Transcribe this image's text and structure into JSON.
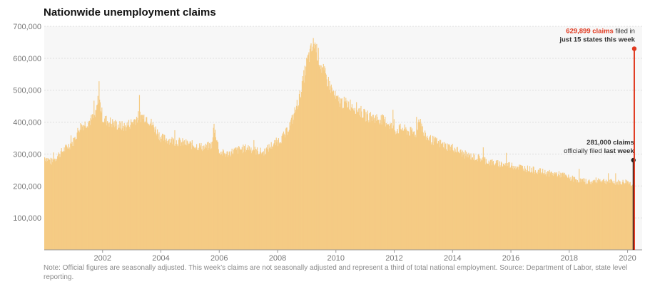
{
  "chart_data": {
    "type": "area",
    "title": "Nationwide unemployment claims",
    "xlabel": "",
    "ylabel": "",
    "xlim": [
      2000.0,
      2020.5
    ],
    "ylim": [
      0,
      700000
    ],
    "y_ticks": [
      {
        "value": 100000,
        "label": "100,000"
      },
      {
        "value": 200000,
        "label": "200,000"
      },
      {
        "value": 300000,
        "label": "300,000"
      },
      {
        "value": 400000,
        "label": "400,000"
      },
      {
        "value": 500000,
        "label": "500,000"
      },
      {
        "value": 600000,
        "label": "600,000"
      },
      {
        "value": 700000,
        "label": "700,000"
      }
    ],
    "x_ticks": [
      {
        "value": 2002,
        "label": "2002"
      },
      {
        "value": 2004,
        "label": "2004"
      },
      {
        "value": 2006,
        "label": "2006"
      },
      {
        "value": 2008,
        "label": "2008"
      },
      {
        "value": 2010,
        "label": "2010"
      },
      {
        "value": 2012,
        "label": "2012"
      },
      {
        "value": 2014,
        "label": "2014"
      },
      {
        "value": 2016,
        "label": "2016"
      },
      {
        "value": 2018,
        "label": "2018"
      },
      {
        "value": 2020,
        "label": "2020"
      }
    ],
    "grid": "horizontal",
    "colors": {
      "area": "#f5cb84",
      "highlight": "#e0391f",
      "last": "#222222",
      "plot_bg": "#f7f7f7",
      "grid": "#dddddd"
    },
    "series": [
      {
        "values": [
          [
            2000.0,
            290000
          ],
          [
            2000.25,
            275000
          ],
          [
            2000.5,
            300000
          ],
          [
            2000.75,
            320000
          ],
          [
            2001.0,
            340000
          ],
          [
            2001.2,
            385000
          ],
          [
            2001.5,
            400000
          ],
          [
            2001.75,
            420000
          ],
          [
            2001.85,
            480000
          ],
          [
            2002.0,
            410000
          ],
          [
            2002.25,
            400000
          ],
          [
            2002.5,
            390000
          ],
          [
            2002.75,
            385000
          ],
          [
            2003.0,
            400000
          ],
          [
            2003.25,
            420000
          ],
          [
            2003.5,
            415000
          ],
          [
            2003.75,
            385000
          ],
          [
            2004.0,
            350000
          ],
          [
            2004.25,
            345000
          ],
          [
            2004.5,
            340000
          ],
          [
            2004.75,
            335000
          ],
          [
            2005.0,
            330000
          ],
          [
            2005.25,
            325000
          ],
          [
            2005.5,
            320000
          ],
          [
            2005.75,
            330000
          ],
          [
            2005.8,
            390000
          ],
          [
            2006.0,
            305000
          ],
          [
            2006.25,
            300000
          ],
          [
            2006.5,
            310000
          ],
          [
            2006.75,
            315000
          ],
          [
            2007.0,
            320000
          ],
          [
            2007.25,
            310000
          ],
          [
            2007.5,
            305000
          ],
          [
            2007.75,
            325000
          ],
          [
            2008.0,
            340000
          ],
          [
            2008.25,
            360000
          ],
          [
            2008.5,
            410000
          ],
          [
            2008.75,
            480000
          ],
          [
            2009.0,
            590000
          ],
          [
            2009.25,
            650000
          ],
          [
            2009.5,
            570000
          ],
          [
            2009.75,
            520000
          ],
          [
            2010.0,
            470000
          ],
          [
            2010.25,
            460000
          ],
          [
            2010.5,
            455000
          ],
          [
            2010.75,
            440000
          ],
          [
            2011.0,
            420000
          ],
          [
            2011.25,
            415000
          ],
          [
            2011.5,
            410000
          ],
          [
            2011.75,
            400000
          ],
          [
            2012.0,
            375000
          ],
          [
            2012.25,
            380000
          ],
          [
            2012.5,
            370000
          ],
          [
            2012.75,
            365000
          ],
          [
            2012.85,
            420000
          ],
          [
            2013.0,
            360000
          ],
          [
            2013.25,
            345000
          ],
          [
            2013.5,
            335000
          ],
          [
            2013.75,
            325000
          ],
          [
            2014.0,
            320000
          ],
          [
            2014.25,
            305000
          ],
          [
            2014.5,
            295000
          ],
          [
            2014.75,
            290000
          ],
          [
            2015.0,
            285000
          ],
          [
            2015.25,
            275000
          ],
          [
            2015.5,
            270000
          ],
          [
            2015.75,
            268000
          ],
          [
            2016.0,
            265000
          ],
          [
            2016.25,
            260000
          ],
          [
            2016.5,
            255000
          ],
          [
            2016.75,
            250000
          ],
          [
            2017.0,
            245000
          ],
          [
            2017.25,
            240000
          ],
          [
            2017.5,
            238000
          ],
          [
            2017.75,
            235000
          ],
          [
            2018.0,
            225000
          ],
          [
            2018.25,
            220000
          ],
          [
            2018.5,
            215000
          ],
          [
            2018.75,
            212000
          ],
          [
            2019.0,
            220000
          ],
          [
            2019.25,
            215000
          ],
          [
            2019.5,
            212000
          ],
          [
            2019.75,
            210000
          ],
          [
            2020.0,
            215000
          ],
          [
            2020.1,
            205000
          ],
          [
            2020.17,
            210000
          ]
        ]
      }
    ],
    "highlights": [
      {
        "x": 2020.2,
        "value": 281000,
        "color": "#222222",
        "label_bold": "281,000 claims",
        "label_regular": "officially filed",
        "label_bold2": "last week"
      },
      {
        "x": 2020.23,
        "value": 629899,
        "color": "#e0391f",
        "label_bold": "629,899 claims",
        "label_regular": "filed in",
        "label_bold2": "just 15 states this week"
      }
    ]
  },
  "note": "Note: Official figures are seasonally adjusted. This week’s claims are not seasonally adjusted and represent a third of total national employment. Source: Department of Labor, state level reporting."
}
